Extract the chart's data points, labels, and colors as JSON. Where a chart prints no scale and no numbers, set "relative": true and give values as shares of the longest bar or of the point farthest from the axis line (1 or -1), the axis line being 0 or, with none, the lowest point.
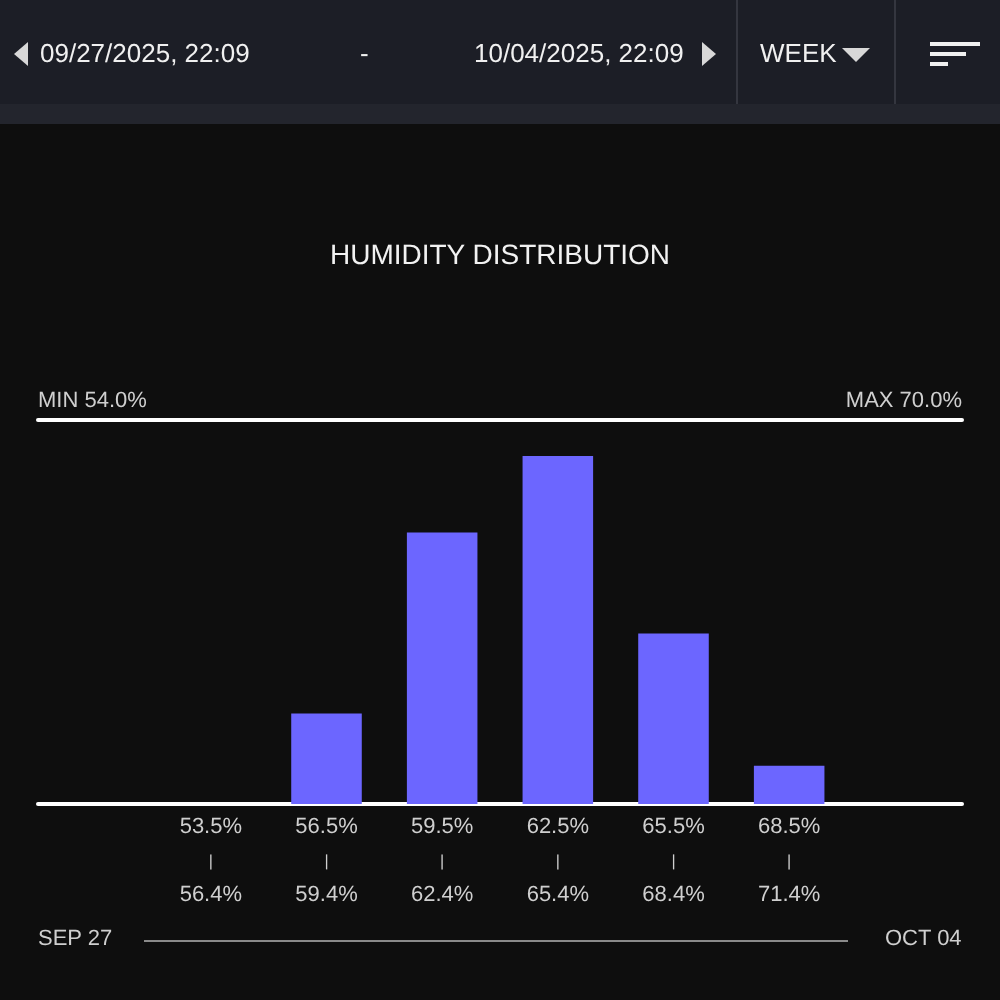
{
  "chart_data": {
    "type": "bar",
    "title": "HUMIDITY DISTRIBUTION",
    "categories": [
      "53.5%\n|\n56.4%",
      "56.5%\n|\n59.4%",
      "59.5%\n|\n62.4%",
      "62.5%\n|\n65.4%",
      "65.5%\n|\n68.4%",
      "68.5%\n|\n71.4%"
    ],
    "values": [
      0,
      0.26,
      0.78,
      1,
      0.49,
      0.11
    ],
    "color": "#6c66ff",
    "relative": true,
    "annotations": [
      "09/27/2025, 22:09",
      "-",
      "10/04/2025, 22:09",
      "WEEK",
      "MIN 54.0%",
      "MAX 70.0%",
      "SEP 27",
      "OCT 04"
    ]
  }
}
